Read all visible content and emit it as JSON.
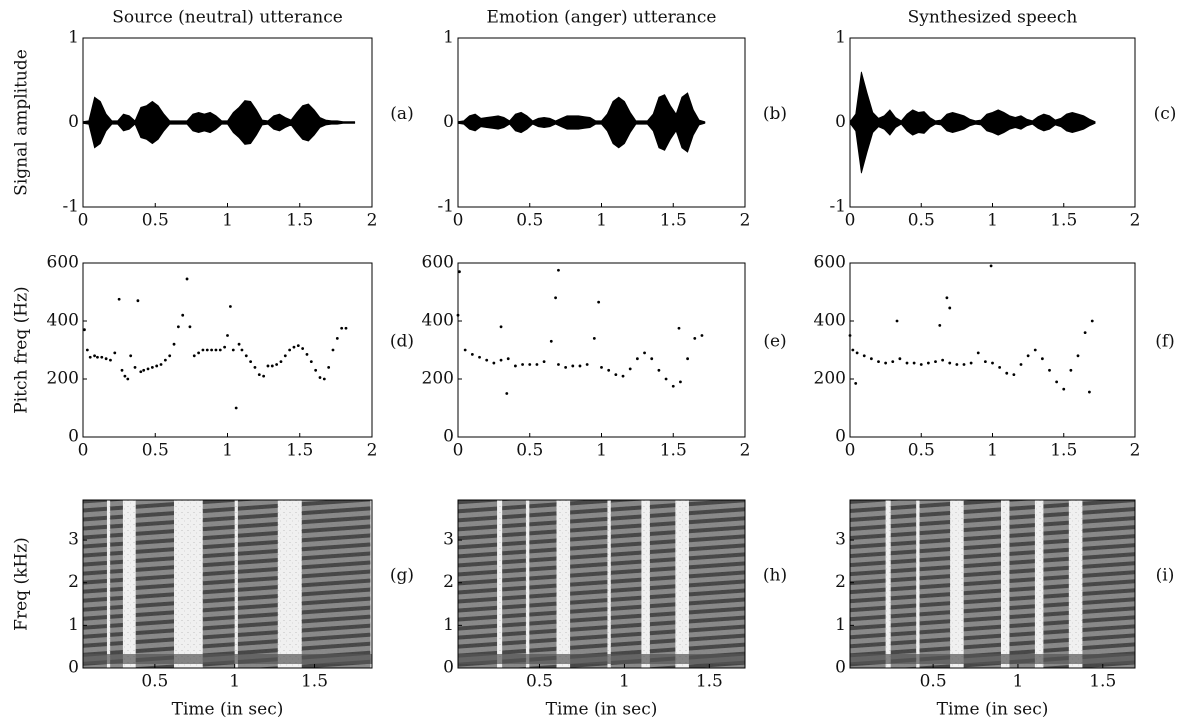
{
  "chart_data": [
    {
      "type": "waveform",
      "title": "Source (neutral) utterance",
      "ylabel": "Signal amplitude",
      "annotation": "(a)",
      "color": "#000000",
      "xlim": [
        0,
        2
      ],
      "xticks": [
        0,
        0.5,
        1,
        1.5,
        2
      ],
      "ylim": [
        -1,
        1
      ],
      "yticks": [
        -1,
        0,
        1
      ],
      "x": [
        0,
        0.04,
        0.08,
        0.12,
        0.16,
        0.2,
        0.24,
        0.28,
        0.32,
        0.36,
        0.4,
        0.44,
        0.48,
        0.52,
        0.56,
        0.6,
        0.64,
        0.68,
        0.72,
        0.76,
        0.8,
        0.84,
        0.88,
        0.92,
        0.96,
        1.0,
        1.04,
        1.08,
        1.12,
        1.16,
        1.2,
        1.24,
        1.28,
        1.32,
        1.36,
        1.4,
        1.44,
        1.48,
        1.52,
        1.56,
        1.6,
        1.64,
        1.68,
        1.72,
        1.76,
        1.8,
        1.84,
        1.88
      ],
      "values": [
        0.01,
        0.02,
        0.3,
        0.25,
        0.1,
        0.02,
        0.02,
        0.1,
        0.08,
        0.02,
        0.18,
        0.2,
        0.25,
        0.2,
        0.1,
        0.02,
        0.02,
        0.02,
        0.02,
        0.1,
        0.12,
        0.1,
        0.12,
        0.08,
        0.02,
        0.02,
        0.12,
        0.18,
        0.26,
        0.25,
        0.15,
        0.03,
        0.02,
        0.08,
        0.1,
        0.06,
        0.03,
        0.12,
        0.2,
        0.22,
        0.15,
        0.06,
        0.03,
        0.02,
        0.02,
        0.01,
        0.01,
        0.01
      ]
    },
    {
      "type": "waveform",
      "title": "Emotion (anger) utterance",
      "annotation": "(b)",
      "color": "#000000",
      "xlim": [
        0,
        2
      ],
      "xticks": [
        0,
        0.5,
        1,
        1.5,
        2
      ],
      "ylim": [
        -1,
        1
      ],
      "yticks": [
        -1,
        0,
        1
      ],
      "x": [
        0,
        0.04,
        0.08,
        0.12,
        0.16,
        0.2,
        0.24,
        0.28,
        0.32,
        0.36,
        0.4,
        0.44,
        0.48,
        0.52,
        0.56,
        0.6,
        0.64,
        0.68,
        0.72,
        0.76,
        0.8,
        0.84,
        0.88,
        0.92,
        0.96,
        1.0,
        1.04,
        1.08,
        1.12,
        1.16,
        1.2,
        1.24,
        1.28,
        1.32,
        1.36,
        1.4,
        1.44,
        1.48,
        1.52,
        1.56,
        1.6,
        1.64,
        1.68,
        1.72
      ],
      "values": [
        0.01,
        0.02,
        0.08,
        0.1,
        0.05,
        0.06,
        0.07,
        0.08,
        0.06,
        0.02,
        0.1,
        0.12,
        0.08,
        0.02,
        0.05,
        0.06,
        0.05,
        0.02,
        0.05,
        0.08,
        0.08,
        0.08,
        0.07,
        0.06,
        0.02,
        0.02,
        0.1,
        0.25,
        0.3,
        0.25,
        0.12,
        0.02,
        0.02,
        0.02,
        0.1,
        0.3,
        0.33,
        0.2,
        0.1,
        0.3,
        0.35,
        0.15,
        0.03,
        0.01
      ]
    },
    {
      "type": "waveform",
      "title": "Synthesized speech",
      "annotation": "(c)",
      "color": "#000000",
      "xlim": [
        0,
        2
      ],
      "xticks": [
        0,
        0.5,
        1,
        1.5,
        2
      ],
      "ylim": [
        -1,
        1
      ],
      "yticks": [
        -1,
        0,
        1
      ],
      "x": [
        0,
        0.04,
        0.08,
        0.12,
        0.16,
        0.2,
        0.24,
        0.28,
        0.32,
        0.36,
        0.4,
        0.44,
        0.48,
        0.52,
        0.56,
        0.6,
        0.64,
        0.68,
        0.72,
        0.76,
        0.8,
        0.84,
        0.88,
        0.92,
        0.96,
        1.0,
        1.04,
        1.08,
        1.12,
        1.16,
        1.2,
        1.24,
        1.28,
        1.32,
        1.36,
        1.4,
        1.44,
        1.48,
        1.52,
        1.56,
        1.6,
        1.64,
        1.68,
        1.72
      ],
      "values": [
        0.01,
        0.1,
        0.6,
        0.35,
        0.12,
        0.05,
        0.08,
        0.15,
        0.06,
        0.02,
        0.1,
        0.15,
        0.12,
        0.13,
        0.06,
        0.02,
        0.03,
        0.1,
        0.12,
        0.1,
        0.08,
        0.04,
        0.02,
        0.03,
        0.1,
        0.12,
        0.15,
        0.12,
        0.08,
        0.06,
        0.08,
        0.04,
        0.02,
        0.07,
        0.1,
        0.08,
        0.03,
        0.05,
        0.1,
        0.12,
        0.1,
        0.08,
        0.04,
        0.01
      ]
    },
    {
      "type": "scatter",
      "ylabel": "Pitch freq (Hz)",
      "annotation": "(d)",
      "color": "#000000",
      "xlim": [
        0,
        2
      ],
      "xticks": [
        0,
        0.5,
        1,
        1.5,
        2
      ],
      "ylim": [
        0,
        600
      ],
      "yticks": [
        0,
        200,
        400,
        600
      ],
      "x": [
        0.01,
        0.03,
        0.05,
        0.08,
        0.1,
        0.13,
        0.16,
        0.19,
        0.22,
        0.25,
        0.27,
        0.29,
        0.31,
        0.33,
        0.36,
        0.38,
        0.4,
        0.42,
        0.45,
        0.48,
        0.51,
        0.54,
        0.57,
        0.6,
        0.63,
        0.66,
        0.69,
        0.72,
        0.74,
        0.77,
        0.8,
        0.83,
        0.86,
        0.89,
        0.92,
        0.95,
        0.98,
        1.0,
        1.02,
        1.04,
        1.06,
        1.08,
        1.1,
        1.13,
        1.16,
        1.19,
        1.22,
        1.25,
        1.28,
        1.31,
        1.34,
        1.37,
        1.4,
        1.43,
        1.46,
        1.49,
        1.52,
        1.55,
        1.58,
        1.61,
        1.64,
        1.67,
        1.7,
        1.73,
        1.76,
        1.79,
        1.82
      ],
      "values": [
        370,
        300,
        275,
        280,
        275,
        275,
        270,
        265,
        290,
        475,
        230,
        210,
        200,
        280,
        240,
        470,
        225,
        230,
        235,
        240,
        245,
        250,
        265,
        280,
        320,
        380,
        420,
        545,
        380,
        280,
        290,
        300,
        300,
        300,
        300,
        300,
        310,
        350,
        450,
        300,
        100,
        320,
        300,
        280,
        260,
        240,
        215,
        210,
        245,
        245,
        250,
        260,
        280,
        300,
        310,
        315,
        305,
        285,
        260,
        230,
        205,
        200,
        240,
        300,
        340,
        375,
        375
      ]
    },
    {
      "type": "scatter",
      "annotation": "(e)",
      "color": "#000000",
      "xlim": [
        0,
        2
      ],
      "xticks": [
        0,
        0.5,
        1,
        1.5,
        2
      ],
      "ylim": [
        0,
        600
      ],
      "yticks": [
        0,
        200,
        400,
        600
      ],
      "x": [
        0,
        0.05,
        0.1,
        0.15,
        0.2,
        0.25,
        0.3,
        0.35,
        0.4,
        0.45,
        0.5,
        0.55,
        0.6,
        0.65,
        0.7,
        0.75,
        0.8,
        0.85,
        0.9,
        0.95,
        1.0,
        1.05,
        1.1,
        1.15,
        1.2,
        1.25,
        1.3,
        1.35,
        1.4,
        1.45,
        1.5,
        1.55,
        1.6,
        1.65,
        1.7,
        0.01,
        0.68,
        0.7,
        0.98,
        0.34,
        0.3,
        1.54
      ],
      "values": [
        420,
        300,
        285,
        275,
        265,
        255,
        265,
        270,
        245,
        250,
        250,
        250,
        260,
        330,
        250,
        240,
        245,
        245,
        250,
        340,
        240,
        230,
        215,
        210,
        235,
        270,
        290,
        270,
        230,
        200,
        175,
        190,
        270,
        340,
        350,
        570,
        480,
        575,
        465,
        150,
        380,
        375
      ]
    },
    {
      "type": "scatter",
      "annotation": "(f)",
      "color": "#000000",
      "xlim": [
        0,
        2
      ],
      "xticks": [
        0,
        0.5,
        1,
        1.5,
        2
      ],
      "ylim": [
        0,
        600
      ],
      "yticks": [
        0,
        200,
        400,
        600
      ],
      "x": [
        0,
        0.05,
        0.1,
        0.15,
        0.2,
        0.25,
        0.3,
        0.35,
        0.4,
        0.45,
        0.5,
        0.55,
        0.6,
        0.65,
        0.7,
        0.75,
        0.8,
        0.85,
        0.9,
        0.95,
        1.0,
        1.05,
        1.1,
        1.15,
        1.2,
        1.25,
        1.3,
        1.35,
        1.4,
        1.45,
        1.5,
        1.55,
        1.6,
        1.65,
        1.7,
        0.02,
        0.68,
        0.7,
        0.99,
        0.33,
        0.63,
        0.04,
        1.68
      ],
      "values": [
        350,
        290,
        280,
        270,
        260,
        255,
        260,
        270,
        255,
        255,
        250,
        255,
        260,
        265,
        255,
        250,
        250,
        255,
        290,
        260,
        255,
        240,
        220,
        215,
        250,
        280,
        300,
        270,
        230,
        190,
        165,
        230,
        280,
        360,
        400,
        300,
        480,
        445,
        590,
        400,
        385,
        185,
        155
      ]
    },
    {
      "type": "spectrogram",
      "ylabel": "Freq (kHz)",
      "xlabel": "Time (in sec)",
      "annotation": "(g)",
      "xlim": [
        0.05,
        1.86
      ],
      "xticks": [
        0.5,
        1,
        1.5
      ],
      "ylim": [
        0,
        3.94
      ],
      "yticks": [
        0,
        1,
        2,
        3
      ],
      "segments": [
        [
          0.05,
          0.2
        ],
        [
          0.22,
          0.3
        ],
        [
          0.38,
          0.62
        ],
        [
          0.8,
          1.0
        ],
        [
          1.02,
          1.27
        ],
        [
          1.42,
          1.85
        ]
      ]
    },
    {
      "type": "spectrogram",
      "xlabel": "Time (in sec)",
      "annotation": "(h)",
      "xlim": [
        0.02,
        1.71
      ],
      "xticks": [
        0.5,
        1,
        1.5
      ],
      "ylim": [
        0,
        3.94
      ],
      "yticks": [
        0,
        1,
        2,
        3
      ],
      "segments": [
        [
          0.02,
          0.25
        ],
        [
          0.28,
          0.42
        ],
        [
          0.44,
          0.6
        ],
        [
          0.68,
          0.9
        ],
        [
          0.92,
          1.1
        ],
        [
          1.15,
          1.3
        ],
        [
          1.38,
          1.71
        ]
      ]
    },
    {
      "type": "spectrogram",
      "xlabel": "Time (in sec)",
      "annotation": "(i)",
      "xlim": [
        0.01,
        1.69
      ],
      "xticks": [
        0.5,
        1,
        1.5
      ],
      "ylim": [
        0,
        3.94
      ],
      "yticks": [
        0,
        1,
        2,
        3
      ],
      "segments": [
        [
          0.01,
          0.22
        ],
        [
          0.25,
          0.4
        ],
        [
          0.42,
          0.6
        ],
        [
          0.68,
          0.9
        ],
        [
          0.95,
          1.1
        ],
        [
          1.15,
          1.3
        ],
        [
          1.38,
          1.69
        ]
      ]
    }
  ]
}
